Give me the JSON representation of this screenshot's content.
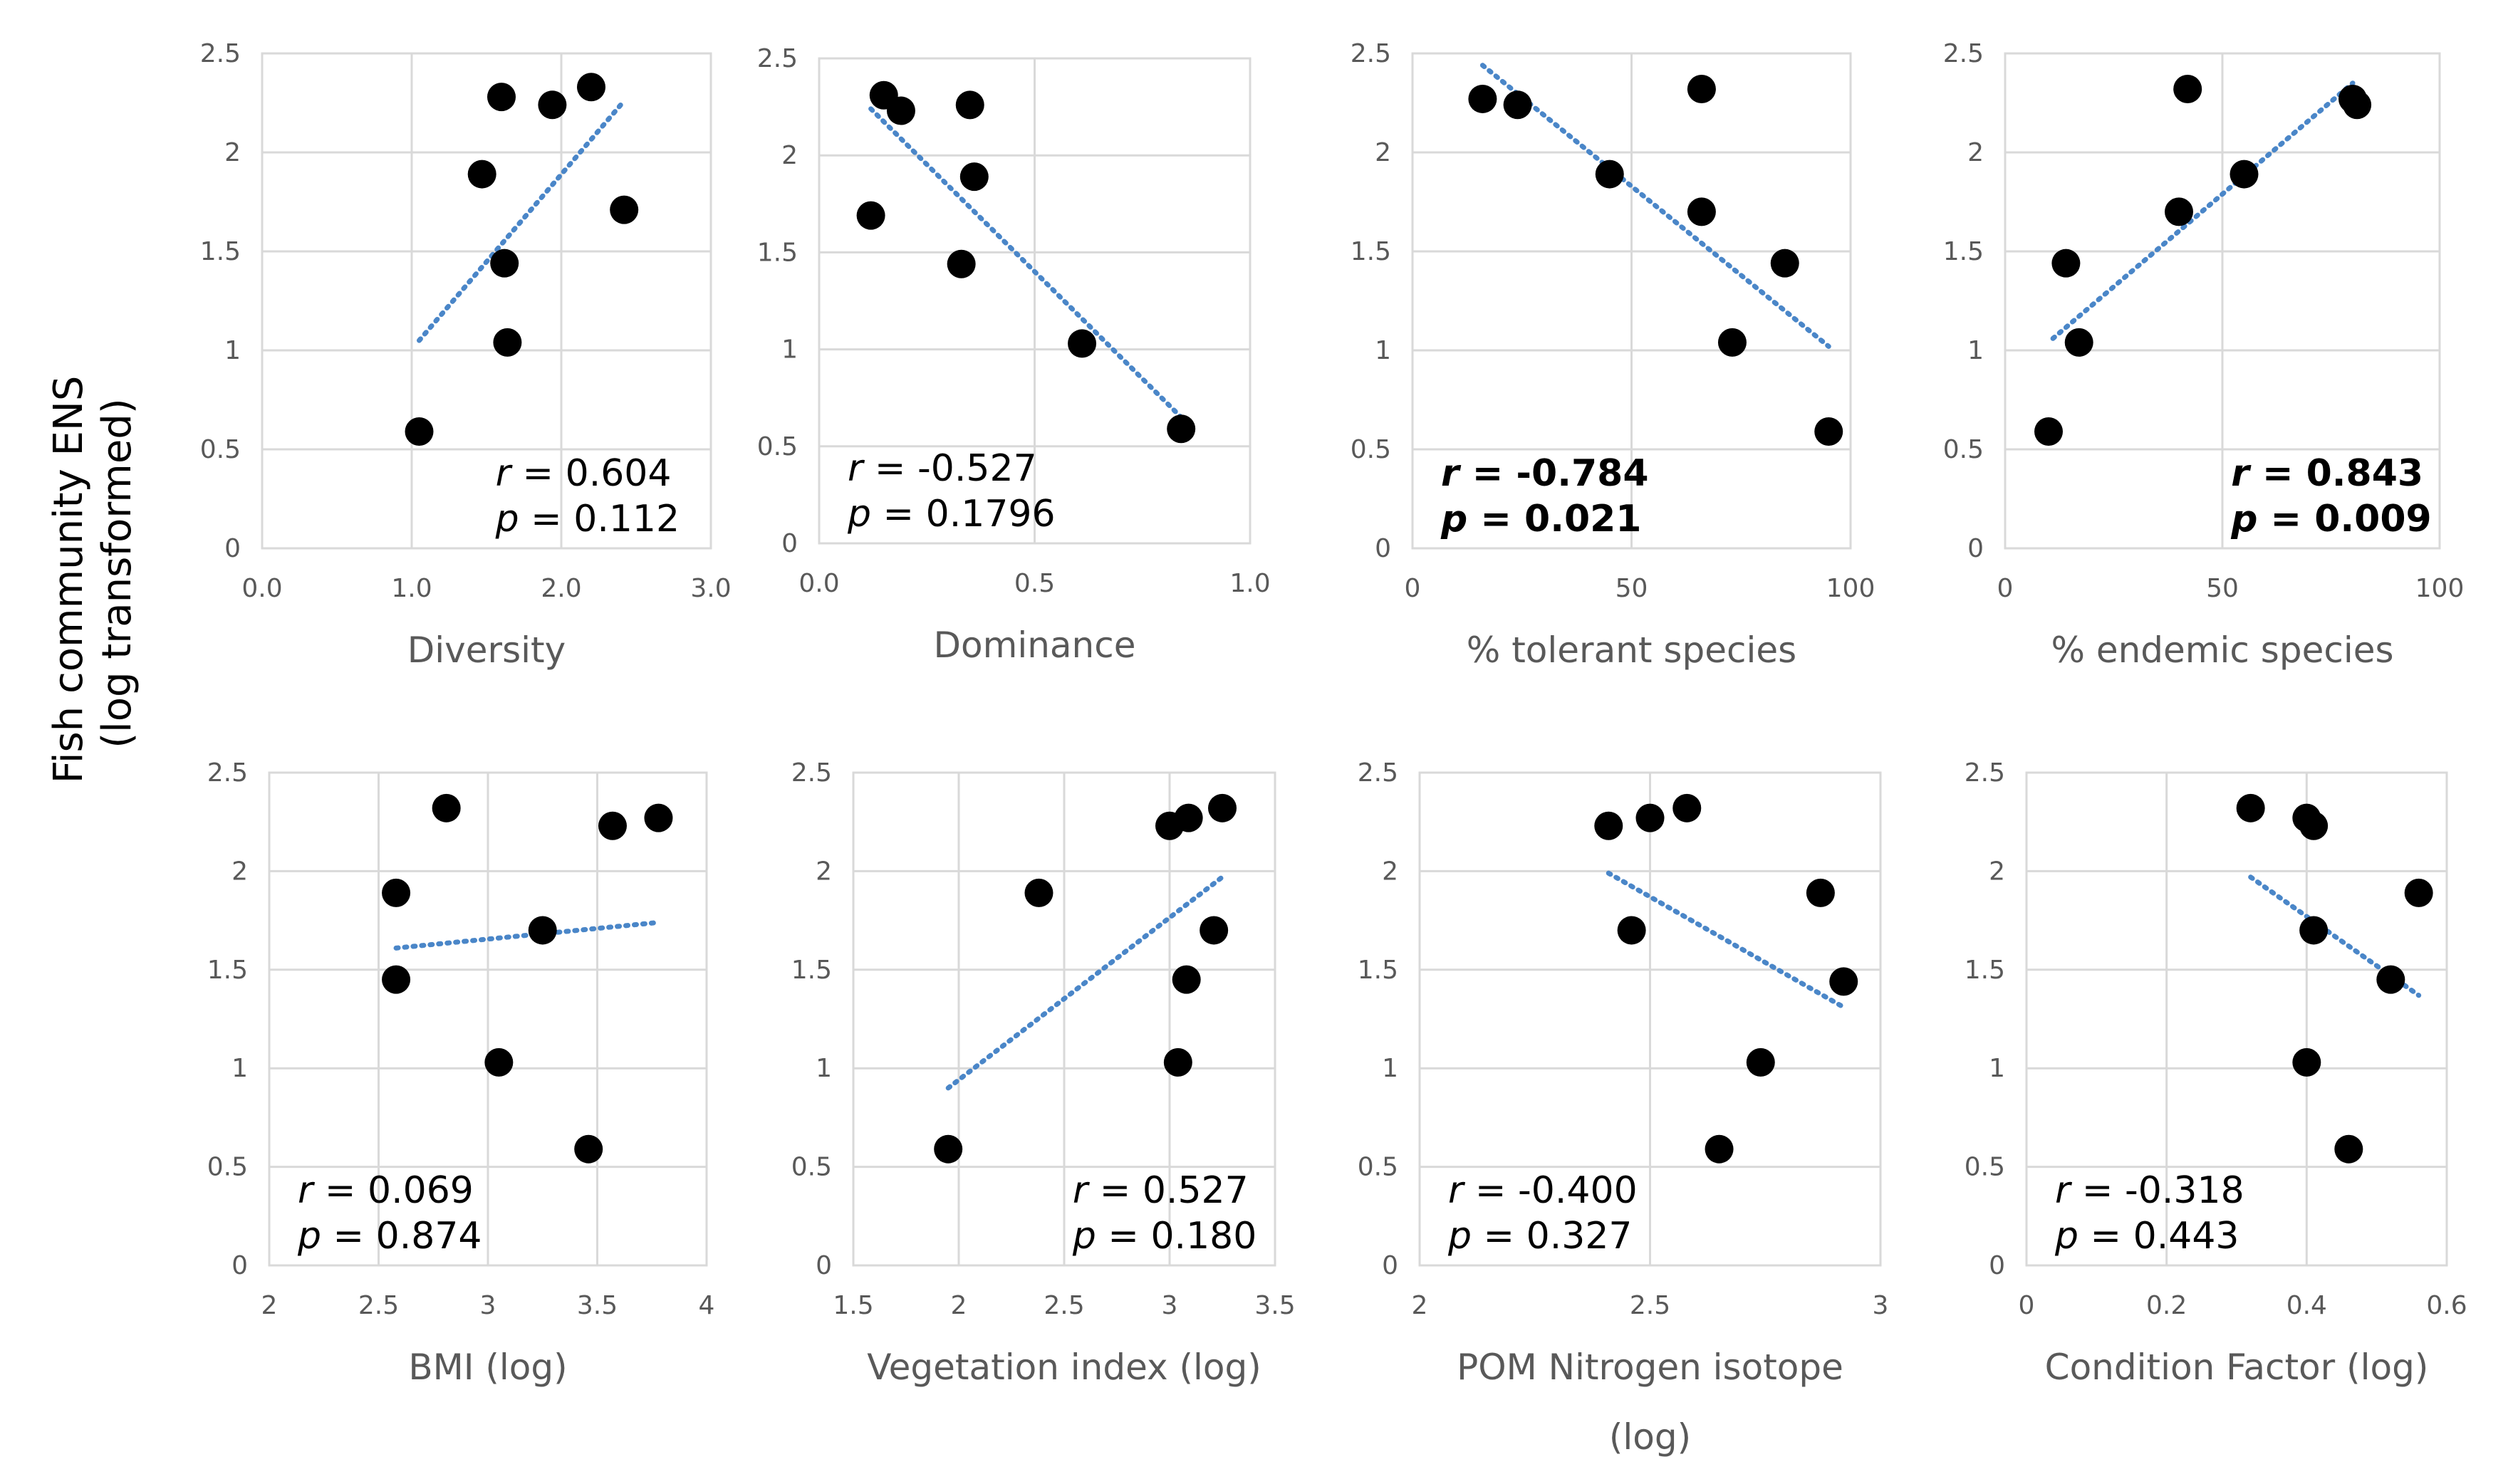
{
  "figure": {
    "y_axis_label_line1": "Fish community ENS",
    "y_axis_label_line2": "(log transformed)"
  },
  "colors": {
    "grid": "#d9d9d9",
    "point": "#000000",
    "trend": "#4a86c8",
    "text": "#595959"
  },
  "chart_data": [
    {
      "type": "scatter",
      "xlabel": "Diversity",
      "xlim": [
        0,
        3
      ],
      "xticks": [
        "0.0",
        "1.0",
        "2.0",
        "3.0"
      ],
      "ylim": [
        0,
        2.5
      ],
      "yticks": [
        "0",
        "0.5",
        "1",
        "1.5",
        "2",
        "2.5"
      ],
      "points": [
        [
          1.05,
          0.59
        ],
        [
          1.47,
          1.89
        ],
        [
          1.6,
          2.28
        ],
        [
          1.62,
          1.44
        ],
        [
          1.64,
          1.04
        ],
        [
          1.94,
          2.24
        ],
        [
          2.2,
          2.33
        ],
        [
          2.42,
          1.71
        ]
      ],
      "trendline": [
        [
          1.05,
          1.05
        ],
        [
          2.42,
          2.26
        ]
      ],
      "annotation": {
        "r_label": "r",
        "r_value": "= 0.604",
        "p_label": "p",
        "p_value": "= 0.112",
        "bold": false,
        "position": "bottom-right"
      }
    },
    {
      "type": "scatter",
      "xlabel": "Dominance",
      "xlim": [
        0,
        1
      ],
      "xticks": [
        "0.0",
        "0.5",
        "1.0"
      ],
      "ylim": [
        0,
        2.5
      ],
      "yticks": [
        "0",
        "0.5",
        "1",
        "1.5",
        "2",
        "2.5"
      ],
      "points": [
        [
          0.12,
          1.69
        ],
        [
          0.15,
          2.31
        ],
        [
          0.19,
          2.23
        ],
        [
          0.33,
          1.44
        ],
        [
          0.35,
          2.26
        ],
        [
          0.36,
          1.89
        ],
        [
          0.61,
          1.03
        ],
        [
          0.84,
          0.59
        ]
      ],
      "trendline": [
        [
          0.12,
          2.24
        ],
        [
          0.84,
          0.65
        ]
      ],
      "annotation": {
        "r_label": "r",
        "r_value": "= -0.527",
        "p_label": "p",
        "p_value": "= 0.1796",
        "bold": false,
        "position": "bottom-left"
      }
    },
    {
      "type": "scatter",
      "xlabel": "% tolerant species",
      "xlim": [
        0,
        100
      ],
      "xticks": [
        "0",
        "50",
        "100"
      ],
      "ylim": [
        0,
        2.5
      ],
      "yticks": [
        "0",
        "0.5",
        "1",
        "1.5",
        "2",
        "2.5"
      ],
      "points": [
        [
          16,
          2.27
        ],
        [
          24,
          2.24
        ],
        [
          45,
          1.89
        ],
        [
          66,
          2.32
        ],
        [
          66,
          1.7
        ],
        [
          73,
          1.04
        ],
        [
          85,
          1.44
        ],
        [
          95,
          0.59
        ]
      ],
      "trendline": [
        [
          16,
          2.44
        ],
        [
          95,
          1.02
        ]
      ],
      "annotation": {
        "r_label": "r",
        "r_value": "= -0.784",
        "p_label": "p",
        "p_value": "= 0.021",
        "bold": true,
        "position": "bottom-left"
      }
    },
    {
      "type": "scatter",
      "xlabel": "% endemic species",
      "xlim": [
        0,
        100
      ],
      "xticks": [
        "0",
        "50",
        "100"
      ],
      "ylim": [
        0,
        2.5
      ],
      "yticks": [
        "0",
        "0.5",
        "1",
        "1.5",
        "2",
        "2.5"
      ],
      "points": [
        [
          10,
          0.59
        ],
        [
          14,
          1.44
        ],
        [
          17,
          1.04
        ],
        [
          40,
          1.7
        ],
        [
          42,
          2.32
        ],
        [
          55,
          1.89
        ],
        [
          80,
          2.27
        ],
        [
          81,
          2.24
        ]
      ],
      "trendline": [
        [
          11,
          1.06
        ],
        [
          80,
          2.35
        ]
      ],
      "annotation": {
        "r_label": "r",
        "r_value": "= 0.843",
        "p_label": "p",
        "p_value": "= 0.009",
        "bold": true,
        "position": "bottom-right"
      }
    },
    {
      "type": "scatter",
      "xlabel": "BMI (log)",
      "xlim": [
        2,
        4
      ],
      "xticks": [
        "2",
        "2.5",
        "3",
        "3.5",
        "4"
      ],
      "ylim": [
        0,
        2.5
      ],
      "yticks": [
        "0",
        "0.5",
        "1",
        "1.5",
        "2",
        "2.5"
      ],
      "points": [
        [
          2.58,
          1.89
        ],
        [
          2.58,
          1.45
        ],
        [
          2.81,
          2.32
        ],
        [
          3.05,
          1.03
        ],
        [
          3.25,
          1.7
        ],
        [
          3.46,
          0.59
        ],
        [
          3.57,
          2.23
        ],
        [
          3.78,
          2.27
        ]
      ],
      "trendline": [
        [
          2.58,
          1.61
        ],
        [
          3.78,
          1.74
        ]
      ],
      "annotation": {
        "r_label": "r",
        "r_value": "= 0.069",
        "p_label": "p",
        "p_value": "= 0.874",
        "bold": false,
        "position": "bottom-left"
      }
    },
    {
      "type": "scatter",
      "xlabel": "Vegetation index (log)",
      "xlim": [
        1.5,
        3.5
      ],
      "xticks": [
        "1.5",
        "2",
        "2.5",
        "3",
        "3.5"
      ],
      "ylim": [
        0,
        2.5
      ],
      "yticks": [
        "0",
        "0.5",
        "1",
        "1.5",
        "2",
        "2.5"
      ],
      "points": [
        [
          1.95,
          0.59
        ],
        [
          2.38,
          1.89
        ],
        [
          3.0,
          2.23
        ],
        [
          3.04,
          1.03
        ],
        [
          3.08,
          1.45
        ],
        [
          3.09,
          2.27
        ],
        [
          3.21,
          1.7
        ],
        [
          3.25,
          2.32
        ]
      ],
      "trendline": [
        [
          1.95,
          0.9
        ],
        [
          3.25,
          1.97
        ]
      ],
      "annotation": {
        "r_label": "r",
        "r_value": "= 0.527",
        "p_label": "p",
        "p_value": "= 0.180",
        "bold": false,
        "position": "bottom-right"
      }
    },
    {
      "type": "scatter",
      "xlabel": "POM Nitrogen isotope",
      "xlabel_line2": "(log)",
      "xlim": [
        2,
        3
      ],
      "xticks": [
        "2",
        "2.5",
        "3"
      ],
      "ylim": [
        0,
        2.5
      ],
      "yticks": [
        "0",
        "0.5",
        "1",
        "1.5",
        "2",
        "2.5"
      ],
      "points": [
        [
          2.41,
          2.23
        ],
        [
          2.46,
          1.7
        ],
        [
          2.5,
          2.27
        ],
        [
          2.58,
          2.32
        ],
        [
          2.65,
          0.59
        ],
        [
          2.74,
          1.03
        ],
        [
          2.87,
          1.89
        ],
        [
          2.92,
          1.44
        ]
      ],
      "trendline": [
        [
          2.41,
          1.99
        ],
        [
          2.92,
          1.31
        ]
      ],
      "annotation": {
        "r_label": "r",
        "r_value": "= -0.400",
        "p_label": "p",
        "p_value": "= 0.327",
        "bold": false,
        "position": "bottom-left"
      }
    },
    {
      "type": "scatter",
      "xlabel": "Condition Factor (log)",
      "xlim": [
        0,
        0.6
      ],
      "xticks": [
        "0",
        "0.2",
        "0.4",
        "0.6"
      ],
      "ylim": [
        0,
        2.5
      ],
      "yticks": [
        "0",
        "0.5",
        "1",
        "1.5",
        "2",
        "2.5"
      ],
      "points": [
        [
          0.32,
          2.32
        ],
        [
          0.4,
          1.03
        ],
        [
          0.4,
          2.27
        ],
        [
          0.41,
          1.7
        ],
        [
          0.41,
          2.23
        ],
        [
          0.46,
          0.59
        ],
        [
          0.52,
          1.45
        ],
        [
          0.56,
          1.89
        ]
      ],
      "trendline": [
        [
          0.32,
          1.97
        ],
        [
          0.56,
          1.37
        ]
      ],
      "annotation": {
        "r_label": "r",
        "r_value": "= -0.318",
        "p_label": "p",
        "p_value": "= 0.443",
        "bold": false,
        "position": "bottom-left"
      }
    }
  ]
}
